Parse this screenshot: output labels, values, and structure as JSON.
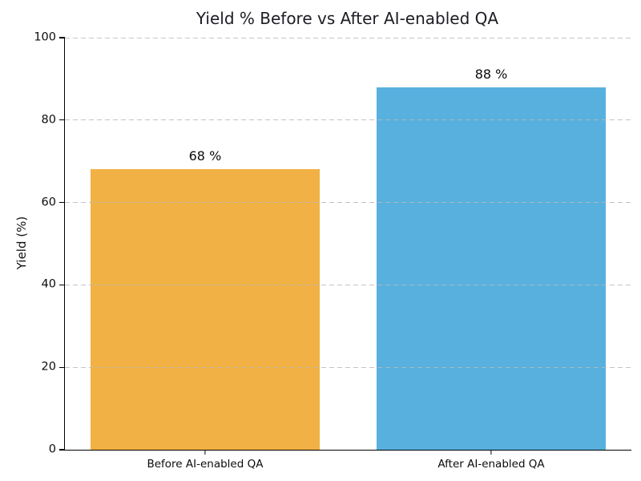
{
  "chart_data": {
    "type": "bar",
    "title": "Yield % Before vs After AI-enabled QA",
    "xlabel": "",
    "ylabel": "Yield (%)",
    "categories": [
      "Before AI-enabled QA",
      "After AI-enabled QA"
    ],
    "values": [
      68,
      88
    ],
    "bar_labels": [
      "68 %",
      "88 %"
    ],
    "bar_colors": [
      "#F1B144",
      "#58B0DF"
    ],
    "ylim": [
      0,
      100
    ],
    "yticks": [
      0,
      20,
      40,
      60,
      80,
      100
    ],
    "grid": "horizontal dashed gridlines at each y tick, drawn over bars",
    "legend_position": "none"
  },
  "colors": {
    "background": "#ffffff",
    "bar_before": "#F1B144",
    "bar_after": "#58B0DF",
    "gridline": "#b9b9b9",
    "axis": "#000000",
    "title_text": "#1c1c24",
    "tick_text": "#0c0c0c"
  }
}
